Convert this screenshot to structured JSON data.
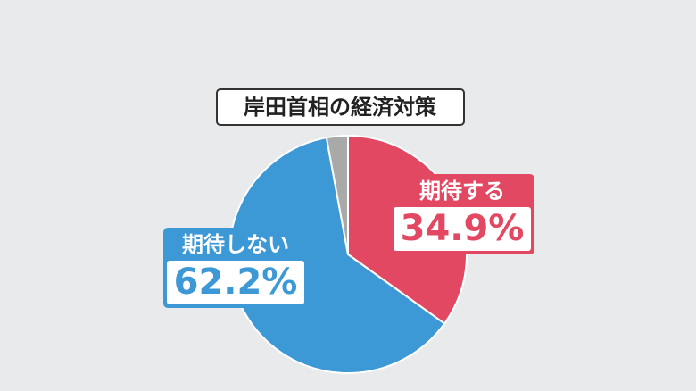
{
  "chart_data": {
    "type": "pie",
    "title": "岸田首相の経済対策",
    "categories": [
      "期待する",
      "期待しない",
      null
    ],
    "values": [
      34.9,
      62.2,
      2.9
    ],
    "value_labels": [
      "34.9%",
      "62.2%",
      null
    ],
    "colors": [
      "#e34863",
      "#3d98d6",
      "#a9a9a9"
    ]
  }
}
